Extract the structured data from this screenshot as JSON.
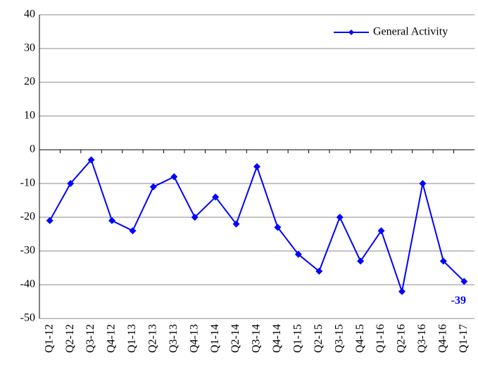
{
  "chart_data": {
    "type": "line",
    "categories": [
      "Q1-12",
      "Q2-12",
      "Q3-12",
      "Q4-12",
      "Q1-13",
      "Q2-13",
      "Q3-13",
      "Q4-13",
      "Q1-14",
      "Q2-14",
      "Q3-14",
      "Q4-14",
      "Q1-15",
      "Q2-15",
      "Q3-15",
      "Q4-15",
      "Q1-16",
      "Q2-16",
      "Q3-16",
      "Q4-16",
      "Q1-17"
    ],
    "series": [
      {
        "name": "General Activity",
        "color": "#0000ff",
        "values": [
          -21,
          -10,
          -3,
          -21,
          -24,
          -11,
          -8,
          -20,
          -14,
          -22,
          -5,
          -23,
          -31,
          -36,
          -20,
          -33,
          -24,
          -42,
          -10,
          -33,
          -39
        ]
      }
    ],
    "ylim": [
      -50,
      40
    ],
    "yticks": [
      -50,
      -40,
      -30,
      -20,
      -10,
      0,
      10,
      20,
      30,
      40
    ],
    "grid": true,
    "legend": "upper right",
    "label_last": true
  }
}
